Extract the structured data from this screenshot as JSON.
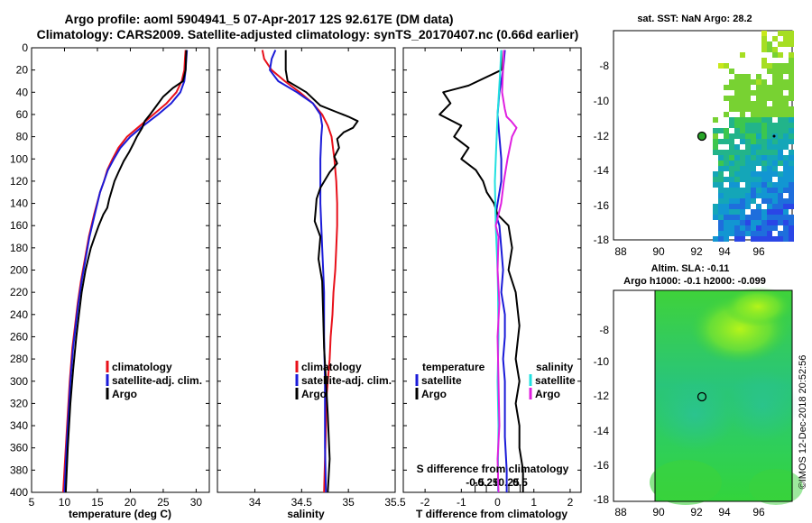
{
  "header": {
    "title_line1": "Argo profile: aoml 5904941_5 07-Apr-2017 12S 92.617E (DM data)",
    "title_line2": "Climatology: CARS2009. Satellite-adjusted climatology: synTS_20170407.nc (0.66d earlier)"
  },
  "colors": {
    "climatology": "#e8101a",
    "satellite": "#1b1bd8",
    "argo": "#000000",
    "sat_salinity": "#22e0e0",
    "argo_salinity": "#e020e0"
  },
  "chart_data": [
    {
      "type": "line",
      "id": "temperature",
      "xlabel": "temperature (deg C)",
      "xlim": [
        5,
        32
      ],
      "ylim": [
        0,
        400
      ],
      "xticks": [
        5,
        10,
        15,
        20,
        25,
        30
      ],
      "xtick_labels": [
        "5",
        "10",
        "15",
        "20",
        "25",
        "30"
      ],
      "yticks": [
        0,
        20,
        40,
        60,
        80,
        100,
        120,
        140,
        160,
        180,
        200,
        220,
        240,
        260,
        280,
        300,
        320,
        340,
        360,
        380,
        400
      ],
      "legend": [
        "climatology",
        "satellite-adj. clim.",
        "Argo"
      ],
      "legend_placement": "bottom-right",
      "series": [
        {
          "name": "climatology",
          "x": [
            28.4,
            28.3,
            28.2,
            27.8,
            27.0,
            25.5,
            23.5,
            21.5,
            19.5,
            18.2,
            17.3,
            16.5,
            16.0,
            15.4,
            14.5,
            13.7,
            13.1,
            12.5,
            12.0,
            11.6,
            11.2,
            10.8,
            10.5,
            10.2,
            9.8
          ],
          "y": [
            2,
            10,
            20,
            30,
            40,
            50,
            60,
            70,
            80,
            90,
            100,
            110,
            120,
            130,
            150,
            170,
            190,
            210,
            230,
            250,
            270,
            300,
            330,
            360,
            400
          ]
        },
        {
          "name": "satellite",
          "x": [
            28.6,
            28.5,
            28.4,
            28.2,
            27.6,
            26.2,
            24.2,
            22.0,
            20.0,
            18.5,
            17.5,
            16.6,
            16.0,
            15.4,
            14.6,
            13.8,
            13.2,
            12.6,
            12.1,
            11.7,
            11.3,
            10.9,
            10.6,
            10.3,
            10.0
          ],
          "y": [
            2,
            10,
            20,
            30,
            40,
            50,
            60,
            70,
            80,
            90,
            100,
            110,
            120,
            130,
            150,
            170,
            190,
            210,
            230,
            250,
            270,
            300,
            330,
            360,
            400
          ]
        },
        {
          "name": "Argo",
          "x": [
            28.5,
            28.4,
            28.0,
            26.5,
            25.0,
            24.0,
            23.0,
            22.2,
            21.8,
            21.0,
            20.5,
            19.8,
            19.0,
            18.2,
            17.6,
            17.2,
            16.8,
            16.5,
            15.9,
            15.2,
            14.6,
            14.0,
            13.6,
            13.2,
            12.6,
            12.2,
            11.8,
            11.3,
            10.9,
            10.5,
            10.2
          ],
          "y": [
            2,
            20,
            30,
            36,
            44,
            52,
            60,
            66,
            72,
            80,
            86,
            94,
            102,
            112,
            120,
            128,
            136,
            144,
            150,
            160,
            170,
            180,
            190,
            200,
            220,
            240,
            260,
            290,
            320,
            360,
            400
          ]
        }
      ]
    },
    {
      "type": "line",
      "id": "salinity",
      "xlabel": "salinity",
      "xlim": [
        33.6,
        35.5
      ],
      "ylim": [
        0,
        400
      ],
      "xticks": [
        34,
        34.5,
        35,
        35.5
      ],
      "xtick_labels": [
        "34",
        "34.5",
        "35",
        "35.5"
      ],
      "legend": [
        "climatology",
        "satellite-adj. clim.",
        "Argo"
      ],
      "legend_placement": "bottom-right",
      "series": [
        {
          "name": "climatology",
          "x": [
            34.08,
            34.1,
            34.18,
            34.32,
            34.48,
            34.62,
            34.72,
            34.78,
            34.82,
            34.85,
            34.87,
            34.88,
            34.88,
            34.87,
            34.86,
            34.84,
            34.83,
            34.81,
            34.8,
            34.78,
            34.76,
            34.76,
            34.75,
            34.74
          ],
          "y": [
            2,
            10,
            20,
            30,
            40,
            50,
            60,
            70,
            80,
            100,
            120,
            140,
            160,
            180,
            200,
            220,
            240,
            260,
            280,
            300,
            320,
            340,
            370,
            400
          ]
        },
        {
          "name": "satellite",
          "x": [
            34.22,
            34.18,
            34.16,
            34.25,
            34.45,
            34.62,
            34.7,
            34.72,
            34.71,
            34.7,
            34.7,
            34.7,
            34.71,
            34.72,
            34.73,
            34.74,
            34.74,
            34.75,
            34.75,
            34.75,
            34.76
          ],
          "y": [
            2,
            10,
            20,
            30,
            40,
            50,
            60,
            70,
            80,
            100,
            120,
            140,
            160,
            180,
            200,
            220,
            260,
            300,
            320,
            360,
            400
          ]
        },
        {
          "name": "Argo",
          "x": [
            34.33,
            34.33,
            34.35,
            34.55,
            34.7,
            34.88,
            35.0,
            35.1,
            35.05,
            34.95,
            34.88,
            34.9,
            34.85,
            34.88,
            34.8,
            34.7,
            34.66,
            34.65,
            34.64,
            34.7,
            34.68,
            34.72,
            34.73,
            34.74,
            34.76,
            34.78,
            34.8,
            34.78
          ],
          "y": [
            2,
            20,
            30,
            40,
            52,
            58,
            62,
            66,
            72,
            76,
            82,
            90,
            98,
            104,
            112,
            126,
            136,
            146,
            156,
            170,
            190,
            210,
            240,
            270,
            300,
            330,
            370,
            400
          ]
        }
      ]
    },
    {
      "type": "line",
      "id": "difference",
      "xlabel": "T difference from climatology",
      "xlabel2": "S difference from climatology",
      "xlim": [
        -2.6,
        2.3
      ],
      "ylim": [
        0,
        400
      ],
      "xticks": [
        -2,
        -1,
        0,
        1,
        2
      ],
      "xtick_labels": [
        "-2",
        "-1",
        "0",
        "1",
        "2"
      ],
      "s_xticks": [
        -0.5,
        -0.25,
        0,
        0.25,
        0.5
      ],
      "s_xtick_labels": [
        "-0.5",
        "-0.25",
        "0",
        "0.25",
        "0.5"
      ],
      "legend": [
        "temperature",
        "satellite",
        "Argo",
        "salinity",
        "satellite",
        "Argo"
      ],
      "legend_placement": "bottom",
      "series": [
        {
          "name": "T satellite",
          "x": [
            0.2,
            0.15,
            0.05,
            0.0,
            0.05,
            0.1,
            0.1,
            0.0,
            -0.05,
            0.05,
            0.1,
            0.15,
            0.1,
            0.2,
            0.2,
            0.15,
            0.2,
            0.2,
            0.2,
            0.25,
            0.25
          ],
          "y": [
            2,
            20,
            40,
            60,
            80,
            100,
            120,
            140,
            150,
            160,
            180,
            200,
            220,
            240,
            260,
            280,
            300,
            320,
            350,
            380,
            400
          ]
        },
        {
          "name": "T Argo",
          "x": [
            0.1,
            0.1,
            -0.8,
            -1.5,
            -1.3,
            -1.6,
            -1.0,
            -1.2,
            -0.8,
            -1.0,
            -0.6,
            -0.4,
            -0.3,
            -0.1,
            0.0,
            0.3,
            0.4,
            0.3,
            0.5,
            0.6,
            0.5,
            0.6,
            0.5,
            0.6,
            0.6,
            0.7,
            0.7
          ],
          "y": [
            2,
            20,
            34,
            40,
            50,
            60,
            70,
            80,
            90,
            100,
            110,
            120,
            130,
            140,
            150,
            160,
            180,
            200,
            220,
            250,
            280,
            300,
            320,
            340,
            360,
            380,
            400
          ]
        },
        {
          "name": "S satellite",
          "x": [
            0.08,
            0.06,
            0.03,
            0.0,
            -0.02,
            -0.04,
            -0.06,
            -0.05,
            -0.04,
            -0.02,
            0.0,
            0.01,
            0.02,
            0.0,
            0.02,
            0.01,
            0.01
          ],
          "y": [
            2,
            20,
            40,
            60,
            80,
            100,
            120,
            140,
            160,
            180,
            200,
            220,
            260,
            300,
            340,
            370,
            400
          ]
        },
        {
          "name": "S Argo",
          "x": [
            0.14,
            0.12,
            0.1,
            0.16,
            0.2,
            0.3,
            0.42,
            0.32,
            0.22,
            0.14,
            0.08,
            0.02,
            -0.04,
            0.02,
            0.0,
            0.04,
            0.0,
            0.02,
            0.04,
            0.0,
            0.02
          ],
          "y": [
            2,
            20,
            40,
            55,
            62,
            66,
            72,
            80,
            100,
            120,
            140,
            150,
            160,
            170,
            200,
            230,
            260,
            300,
            340,
            370,
            400
          ]
        }
      ]
    }
  ],
  "maps": {
    "sst": {
      "title": "sat. SST: NaN Argo: 28.2",
      "xticks": [
        "88",
        "90",
        "92",
        "94",
        "96"
      ],
      "yticks": [
        "-8",
        "-10",
        "-12",
        "-14",
        "-16",
        "-18"
      ]
    },
    "sla": {
      "title_line1": "Altim. SLA: -0.11",
      "title_line2": "Argo h1000: -0.1 h2000: -0.099",
      "xticks": [
        "88",
        "90",
        "92",
        "94",
        "96"
      ],
      "yticks": [
        "-8",
        "-10",
        "-12",
        "-14",
        "-16",
        "-18"
      ]
    }
  },
  "credit": "©IMOS 12-Dec-2018 20:52:56"
}
